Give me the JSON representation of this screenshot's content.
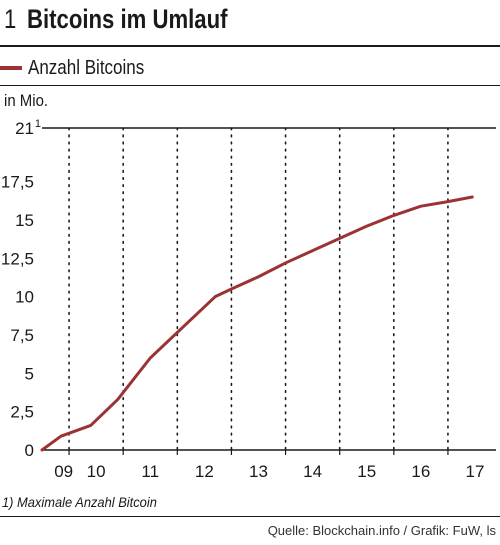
{
  "header": {
    "number": "1",
    "title": "Bitcoins im Umlauf"
  },
  "legend": {
    "label": "Anzahl Bitcoins",
    "color": "#9b3335"
  },
  "unit_label": "in Mio.",
  "footnote": "1) Maximale Anzahl Bitcoin",
  "source": "Quelle: Blockchain.info / Grafik: FuW, ls",
  "chart_data": {
    "type": "line",
    "x_tick_labels": [
      "09",
      "10",
      "11",
      "12",
      "13",
      "14",
      "15",
      "16",
      "17"
    ],
    "y_ticks": [
      0,
      2.5,
      5,
      7.5,
      10,
      12.5,
      15,
      17.5,
      21
    ],
    "y_tick_labels": [
      "0",
      "2,5",
      "5",
      "7,5",
      "10",
      "12,5",
      "15",
      "17,5",
      "21"
    ],
    "y_top_footnote_marker": "1",
    "ylim": [
      0,
      21
    ],
    "series": [
      {
        "name": "Anzahl Bitcoins",
        "color": "#9b3335",
        "x": [
          2009.0,
          2009.35,
          2009.9,
          2010.4,
          2011.0,
          2011.6,
          2012.2,
          2012.5,
          2013.0,
          2013.5,
          2014.0,
          2014.5,
          2015.0,
          2015.5,
          2016.0,
          2016.5,
          2016.95
        ],
        "y": [
          0.0,
          0.9,
          1.6,
          3.3,
          6.0,
          8.0,
          10.0,
          10.5,
          11.3,
          12.2,
          13.0,
          13.8,
          14.6,
          15.3,
          15.9,
          16.2,
          16.5
        ]
      }
    ]
  }
}
